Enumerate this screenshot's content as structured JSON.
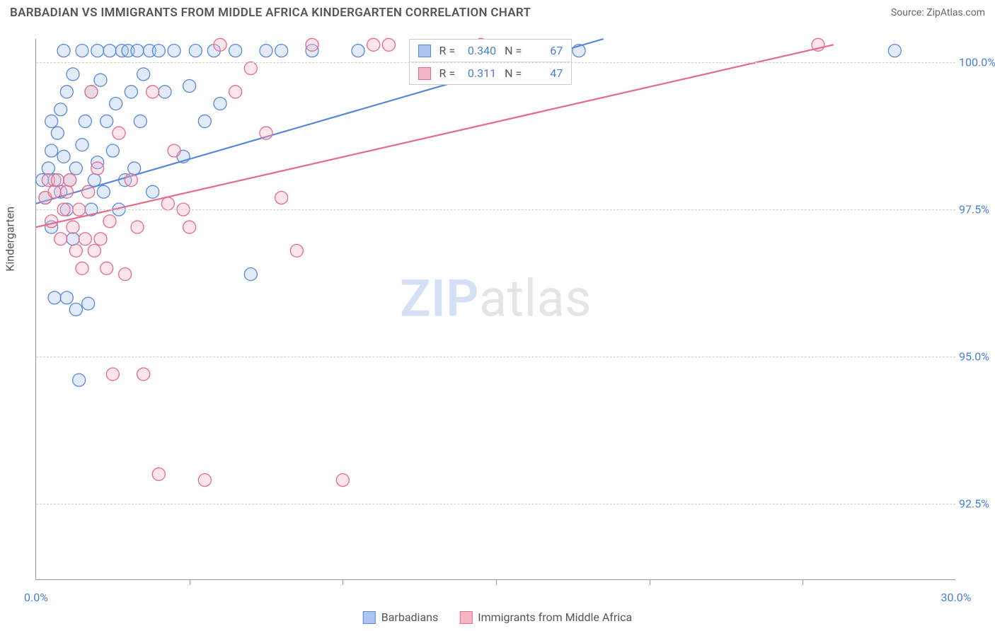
{
  "header": {
    "title": "BARBADIAN VS IMMIGRANTS FROM MIDDLE AFRICA KINDERGARTEN CORRELATION CHART",
    "source_prefix": "Source: ",
    "source_name": "ZipAtlas.com"
  },
  "chart": {
    "type": "scatter",
    "y_axis_label": "Kindergarten",
    "background_color": "#ffffff",
    "grid_color": "#d0d0d0",
    "axis_color": "#999999",
    "label_color": "#4a7dd6",
    "title_fontsize": 17,
    "label_fontsize": 16,
    "xlim": [
      0.0,
      30.0
    ],
    "ylim": [
      91.2,
      100.4
    ],
    "x_ticks": [
      0.0,
      30.0
    ],
    "x_tick_labels": [
      "0.0%",
      "30.0%"
    ],
    "x_minor_ticks": [
      5.0,
      10.0,
      15.0,
      20.0,
      25.0
    ],
    "y_ticks": [
      92.5,
      95.0,
      97.5,
      100.0
    ],
    "y_tick_labels": [
      "92.5%",
      "95.0%",
      "97.5%",
      "100.0%"
    ],
    "marker_radius": 9,
    "marker_fill_opacity": 0.35,
    "marker_stroke_width": 1.3,
    "trend_line_width": 2.2,
    "series": [
      {
        "name": "Barbadians",
        "color": "#5b87d8",
        "fill": "#a9c5f0",
        "R": "0.340",
        "N": "67",
        "trend": {
          "x1": 0.0,
          "y1": 97.6,
          "x2": 18.5,
          "y2": 100.4
        },
        "points": [
          [
            0.2,
            98.0
          ],
          [
            0.3,
            97.7
          ],
          [
            0.4,
            98.2
          ],
          [
            0.5,
            98.5
          ],
          [
            0.5,
            97.2
          ],
          [
            0.6,
            98.0
          ],
          [
            0.6,
            96.0
          ],
          [
            0.7,
            98.8
          ],
          [
            0.8,
            99.2
          ],
          [
            0.8,
            97.8
          ],
          [
            0.9,
            98.4
          ],
          [
            0.9,
            100.2
          ],
          [
            1.0,
            97.5
          ],
          [
            1.0,
            99.5
          ],
          [
            1.1,
            98.0
          ],
          [
            1.2,
            99.8
          ],
          [
            1.2,
            97.0
          ],
          [
            1.3,
            95.8
          ],
          [
            1.3,
            98.2
          ],
          [
            1.4,
            94.6
          ],
          [
            1.5,
            98.6
          ],
          [
            1.5,
            100.2
          ],
          [
            1.6,
            99.0
          ],
          [
            1.7,
            95.9
          ],
          [
            1.8,
            97.5
          ],
          [
            1.8,
            99.5
          ],
          [
            1.9,
            98.0
          ],
          [
            2.0,
            100.2
          ],
          [
            2.0,
            98.3
          ],
          [
            2.1,
            99.7
          ],
          [
            2.2,
            97.8
          ],
          [
            2.3,
            99.0
          ],
          [
            2.4,
            100.2
          ],
          [
            2.5,
            98.5
          ],
          [
            2.6,
            99.3
          ],
          [
            2.7,
            97.5
          ],
          [
            2.8,
            100.2
          ],
          [
            2.9,
            98.0
          ],
          [
            3.0,
            100.2
          ],
          [
            3.1,
            99.5
          ],
          [
            3.2,
            98.2
          ],
          [
            3.3,
            100.2
          ],
          [
            3.4,
            99.0
          ],
          [
            3.5,
            99.8
          ],
          [
            3.7,
            100.2
          ],
          [
            3.8,
            97.8
          ],
          [
            4.0,
            100.2
          ],
          [
            4.2,
            99.5
          ],
          [
            4.5,
            100.2
          ],
          [
            4.8,
            98.4
          ],
          [
            5.0,
            99.6
          ],
          [
            5.2,
            100.2
          ],
          [
            5.5,
            99.0
          ],
          [
            5.8,
            100.2
          ],
          [
            6.0,
            99.3
          ],
          [
            6.5,
            100.2
          ],
          [
            7.0,
            96.4
          ],
          [
            7.5,
            100.2
          ],
          [
            8.0,
            100.2
          ],
          [
            9.0,
            100.2
          ],
          [
            10.5,
            100.2
          ],
          [
            13.0,
            100.2
          ],
          [
            15.0,
            100.2
          ],
          [
            17.7,
            100.2
          ],
          [
            28.0,
            100.2
          ],
          [
            1.0,
            96.0
          ],
          [
            0.5,
            99.0
          ]
        ]
      },
      {
        "name": "Immigrants from Middle Africa",
        "color": "#e56a8b",
        "fill": "#f5b6c6",
        "R": "0.311",
        "N": "47",
        "trend": {
          "x1": 0.0,
          "y1": 97.2,
          "x2": 26.0,
          "y2": 100.3
        },
        "points": [
          [
            0.3,
            97.7
          ],
          [
            0.4,
            98.0
          ],
          [
            0.5,
            97.3
          ],
          [
            0.6,
            97.8
          ],
          [
            0.7,
            98.0
          ],
          [
            0.8,
            97.0
          ],
          [
            0.9,
            97.5
          ],
          [
            1.0,
            97.8
          ],
          [
            1.1,
            98.0
          ],
          [
            1.2,
            97.2
          ],
          [
            1.3,
            96.8
          ],
          [
            1.4,
            97.5
          ],
          [
            1.5,
            96.5
          ],
          [
            1.6,
            97.0
          ],
          [
            1.7,
            97.8
          ],
          [
            1.8,
            99.5
          ],
          [
            1.9,
            96.8
          ],
          [
            2.0,
            98.2
          ],
          [
            2.1,
            97.0
          ],
          [
            2.3,
            96.5
          ],
          [
            2.4,
            97.3
          ],
          [
            2.5,
            94.7
          ],
          [
            2.7,
            98.8
          ],
          [
            2.9,
            96.4
          ],
          [
            3.1,
            98.0
          ],
          [
            3.3,
            97.2
          ],
          [
            3.5,
            94.7
          ],
          [
            3.8,
            99.5
          ],
          [
            4.0,
            93.0
          ],
          [
            4.3,
            97.6
          ],
          [
            4.5,
            98.5
          ],
          [
            4.8,
            97.5
          ],
          [
            5.0,
            97.2
          ],
          [
            5.5,
            92.9
          ],
          [
            6.0,
            100.3
          ],
          [
            6.5,
            99.5
          ],
          [
            7.0,
            99.9
          ],
          [
            7.5,
            98.8
          ],
          [
            8.0,
            97.7
          ],
          [
            8.5,
            96.8
          ],
          [
            9.0,
            100.3
          ],
          [
            10.0,
            92.9
          ],
          [
            11.0,
            100.3
          ],
          [
            11.5,
            100.3
          ],
          [
            14.5,
            100.3
          ],
          [
            16.0,
            100.0
          ],
          [
            25.5,
            100.3
          ]
        ]
      }
    ],
    "stat_box": {
      "left_pct": 40.5,
      "top_pct": 0
    }
  },
  "legend": {
    "items": [
      {
        "label": "Barbadians",
        "color": "#5b87d8",
        "fill": "#a9c5f0"
      },
      {
        "label": "Immigrants from Middle Africa",
        "color": "#e56a8b",
        "fill": "#f5b6c6"
      }
    ]
  },
  "watermark": {
    "bold": "ZIP",
    "light": "atlas"
  }
}
